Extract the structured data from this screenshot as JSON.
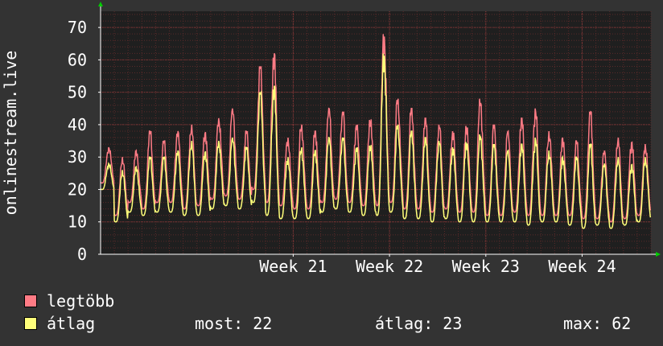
{
  "colors": {
    "background": "#333333",
    "plot_bg": "#1f1f1f",
    "grid": "#5a2a2a",
    "legtobb": "#ff7b85",
    "atlag": "#ffff7a",
    "axis_arrow": "#00cc00"
  },
  "chart_data": {
    "type": "line",
    "ylabel": "onlinestream.live",
    "ylim": [
      0,
      75
    ],
    "yticks": [
      0,
      10,
      20,
      30,
      40,
      50,
      60,
      70
    ],
    "x_ticks": [
      {
        "label": "Week 21",
        "day": 14
      },
      {
        "label": "Week 22",
        "day": 21
      },
      {
        "label": "Week 23",
        "day": 28
      },
      {
        "label": "Week 24",
        "day": 35
      }
    ],
    "x_range_days": [
      0,
      40
    ],
    "grid": true,
    "series": [
      {
        "name": "legtöbb",
        "color": "#ff7b85",
        "daily_peaks": [
          33,
          30,
          32,
          38,
          35,
          38,
          40,
          38,
          42,
          45,
          38,
          58,
          62,
          36,
          40,
          38,
          45,
          44,
          40,
          42,
          68,
          48,
          45,
          42,
          40,
          38,
          40,
          48,
          40,
          38,
          42,
          45,
          38,
          36,
          35,
          44,
          32,
          36,
          35,
          34
        ],
        "daily_lows": [
          22,
          12,
          16,
          14,
          16,
          16,
          14,
          15,
          17,
          18,
          17,
          20,
          16,
          15,
          14,
          14,
          16,
          17,
          16,
          15,
          15,
          16,
          14,
          14,
          13,
          14,
          13,
          13,
          12,
          12,
          13,
          12,
          12,
          12,
          12,
          11,
          11,
          10,
          11,
          12
        ]
      },
      {
        "name": "átlag",
        "color": "#ffff7a",
        "daily_peaks": [
          28,
          26,
          27,
          30,
          30,
          32,
          35,
          32,
          35,
          36,
          33,
          50,
          52,
          30,
          33,
          32,
          36,
          36,
          33,
          34,
          62,
          40,
          38,
          36,
          35,
          33,
          35,
          37,
          34,
          32,
          34,
          36,
          32,
          30,
          30,
          34,
          28,
          30,
          28,
          30
        ],
        "daily_lows": [
          20,
          10,
          13,
          12,
          13,
          13,
          12,
          12,
          14,
          15,
          14,
          16,
          12,
          11,
          11,
          11,
          13,
          14,
          13,
          12,
          12,
          13,
          11,
          11,
          10,
          11,
          10,
          10,
          10,
          10,
          10,
          9,
          10,
          10,
          9,
          8,
          9,
          8,
          9,
          10
        ]
      }
    ]
  },
  "legend": {
    "items": [
      {
        "label": "legtöbb"
      },
      {
        "label": "átlag"
      }
    ],
    "stats": {
      "now": "most: 22",
      "avg": "átlag: 23",
      "max": "max: 62"
    }
  }
}
